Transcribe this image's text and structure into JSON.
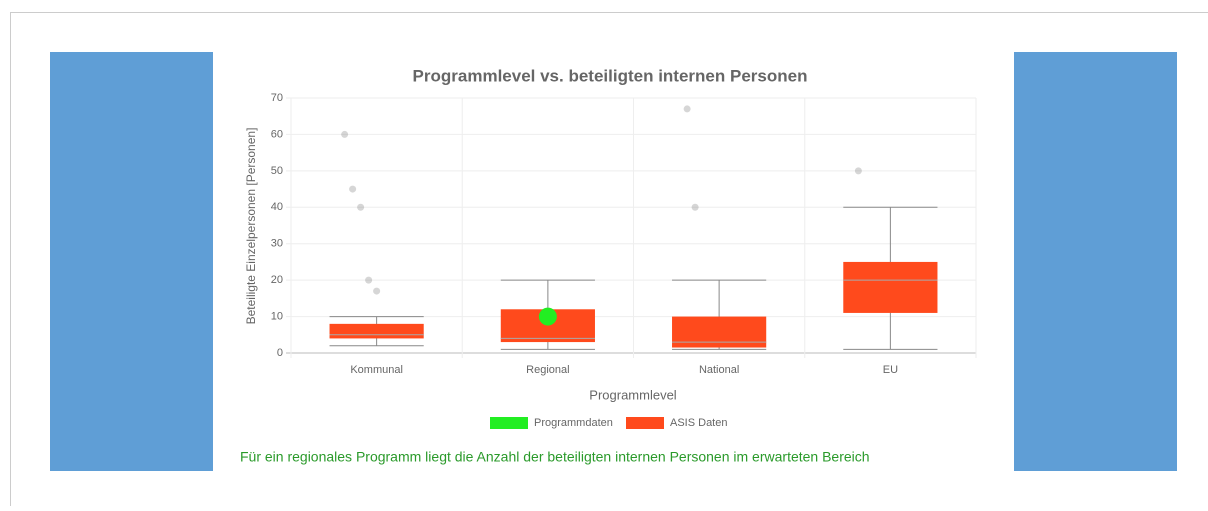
{
  "chart_data": {
    "type": "box",
    "title": "Programmlevel vs. beteiligten internen Personen",
    "x_label": "Programmlevel",
    "y_label": "Beteiligte Einzelpersonen [Personen]",
    "categories": [
      "Kommunal",
      "Regional",
      "National",
      "EU"
    ],
    "ylim": [
      0,
      70
    ],
    "yticks": [
      0,
      10,
      20,
      30,
      40,
      50,
      60,
      70
    ],
    "grid": true,
    "series": [
      {
        "name": "Programmdaten",
        "color": "#22ee22",
        "values": [
          null,
          10,
          null,
          null
        ]
      },
      {
        "name": "ASIS Daten",
        "color": "#ff4a1c",
        "min": [
          2,
          1,
          1,
          1
        ],
        "q1": [
          4,
          3,
          1.5,
          11
        ],
        "median": [
          5,
          4,
          3,
          20
        ],
        "q3": [
          8,
          12,
          10,
          25
        ],
        "max": [
          10,
          20,
          20,
          40
        ],
        "outliers": [
          [
            60,
            45,
            40,
            20,
            17
          ],
          [],
          [
            67,
            40
          ],
          [
            50
          ]
        ]
      }
    ]
  },
  "message": "Für ein regionales Programm liegt die Anzahl der beteiligten internen Personen im erwarteten Bereich"
}
